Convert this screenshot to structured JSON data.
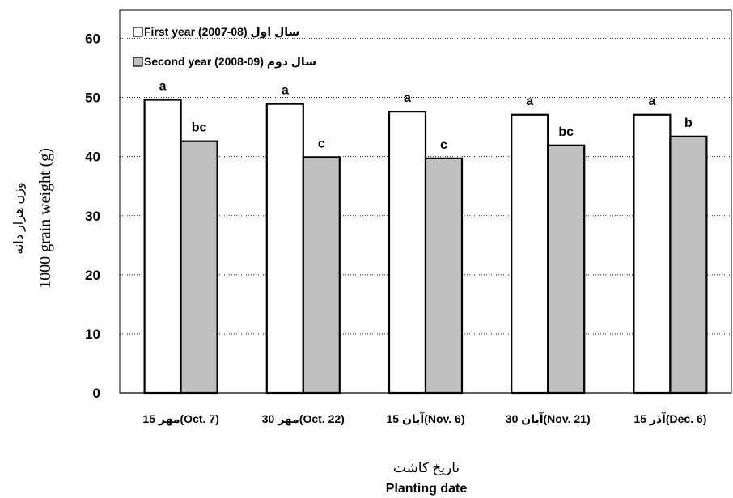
{
  "chart_data": {
    "type": "bar",
    "categories": [
      "15 مهر(Oct. 7)",
      "30 مهر(Oct. 22)",
      "15 آبان(Nov. 6)",
      "30 آبان(Nov. 21)",
      "15 آذر(Dec. 6)"
    ],
    "series": [
      {
        "name": "First year (2007-08) سال اول",
        "values": [
          49.6,
          48.9,
          47.6,
          47.1,
          47.1
        ],
        "letters": [
          "a",
          "a",
          "a",
          "a",
          "a"
        ],
        "color": "#ffffff"
      },
      {
        "name": "Second year (2008-09) سال دوم",
        "values": [
          42.6,
          39.9,
          39.7,
          41.9,
          43.4
        ],
        "letters": [
          "bc",
          "c",
          "c",
          "bc",
          "b"
        ],
        "color": "#bfbfbf"
      }
    ],
    "ylabel_fa": "وزن هزار دانه",
    "ylabel": "1000 grain weight (g)",
    "xlabel_fa": "تاریخ کاشت",
    "xlabel": "Planting date",
    "ylim": [
      0,
      60
    ],
    "yticks": [
      0,
      10,
      20,
      30,
      40,
      50,
      60
    ],
    "grid": true,
    "legend_position": "top-left"
  }
}
